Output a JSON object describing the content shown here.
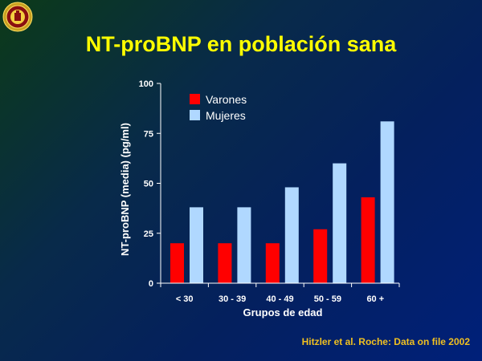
{
  "slide": {
    "title": "NT-proBNP en población sana",
    "source": "Hitzler et al. Roche: Data on file 2002"
  },
  "chart_data": {
    "type": "bar",
    "categories": [
      "< 30",
      "30 - 39",
      "40 - 49",
      "50 - 59",
      "60 +"
    ],
    "series": [
      {
        "name": "Varones",
        "color": "#ff0000",
        "values": [
          20,
          20,
          20,
          27,
          43
        ]
      },
      {
        "name": "Mujeres",
        "color": "#b0d8ff",
        "values": [
          38,
          38,
          48,
          60,
          81
        ]
      }
    ],
    "xlabel": "Grupos de edad",
    "ylabel": "NT-proBNP (media) (pg/ml)",
    "ylim": [
      0,
      100
    ],
    "yticks": [
      "0",
      "25",
      "50",
      "75",
      "100"
    ],
    "grid": false,
    "legend_position": "top-left"
  }
}
